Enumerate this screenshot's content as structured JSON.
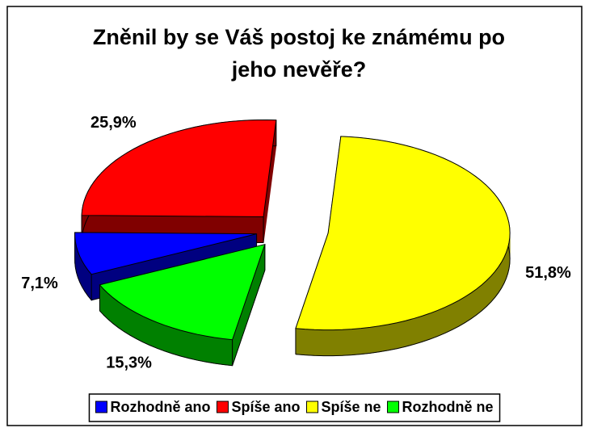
{
  "chart_data": {
    "type": "pie3d",
    "title": "Zněnil by se Váš postoj ke známému po jeho nevěře?",
    "categories": [
      "Rozhodně ano",
      "Spíše ano",
      "Spíše ne",
      "Rozhodně ne"
    ],
    "values": [
      7.1,
      25.9,
      51.8,
      15.3
    ],
    "value_labels": [
      "7,1%",
      "25,9%",
      "51,8%",
      "15,3%"
    ],
    "colors": [
      "#0000ff",
      "#ff0000",
      "#ffff00",
      "#00ff00"
    ],
    "side_colors": [
      "#000080",
      "#800000",
      "#808000",
      "#008000"
    ],
    "legend": "bottom"
  }
}
